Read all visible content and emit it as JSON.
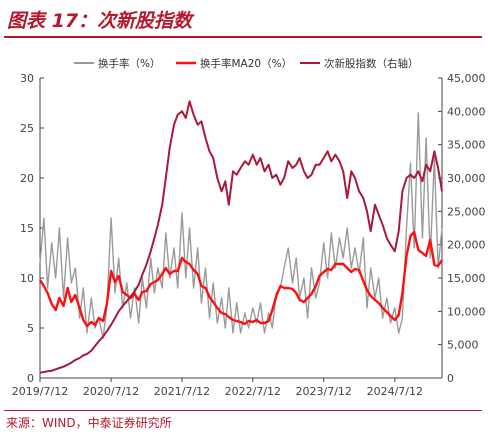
{
  "header": {
    "title": "图表 17：次新股指数"
  },
  "footer": {
    "source": "来源：WIND，中泰证券研究所"
  },
  "chart_data": {
    "type": "line",
    "title": "",
    "x_tick_labels": [
      "2019/7/12",
      "2020/7/12",
      "2021/7/12",
      "2022/7/12",
      "2023/7/12",
      "2024/7/12"
    ],
    "x_ticks": [
      "2019-07-12",
      "2020-07-12",
      "2021-07-12",
      "2022-07-12",
      "2023-07-12",
      "2024-07-12"
    ],
    "x_range": [
      "2019-07-12",
      "2025-03-12"
    ],
    "y_left": {
      "range": [
        0,
        30
      ],
      "ticks": [
        0,
        5,
        10,
        15,
        20,
        25,
        30
      ]
    },
    "y_right": {
      "range": [
        0,
        45000
      ],
      "ticks": [
        0,
        5000,
        10000,
        15000,
        20000,
        25000,
        30000,
        35000,
        40000,
        45000
      ],
      "tick_labels": [
        "0",
        "5,000",
        "10,000",
        "15,000",
        "20,000",
        "25,000",
        "30,000",
        "35,000",
        "40,000",
        "45,000"
      ]
    },
    "grid": false,
    "legend_position": "top",
    "series": [
      {
        "name": "换手率（%）",
        "axis": "left",
        "color": "#9a9a9a",
        "x": [
          "2019-07-12",
          "2019-08-01",
          "2019-08-20",
          "2019-09-10",
          "2019-10-01",
          "2019-10-20",
          "2019-11-10",
          "2019-12-01",
          "2019-12-20",
          "2020-01-10",
          "2020-02-01",
          "2020-02-20",
          "2020-03-10",
          "2020-04-01",
          "2020-04-20",
          "2020-05-10",
          "2020-06-01",
          "2020-06-20",
          "2020-07-12",
          "2020-08-01",
          "2020-08-20",
          "2020-09-10",
          "2020-10-01",
          "2020-10-20",
          "2020-11-10",
          "2020-12-01",
          "2020-12-20",
          "2021-01-10",
          "2021-02-01",
          "2021-02-20",
          "2021-03-10",
          "2021-04-01",
          "2021-04-20",
          "2021-05-10",
          "2021-06-01",
          "2021-06-20",
          "2021-07-12",
          "2021-08-01",
          "2021-08-20",
          "2021-09-10",
          "2021-10-01",
          "2021-10-20",
          "2021-11-10",
          "2021-12-01",
          "2021-12-20",
          "2022-01-10",
          "2022-02-01",
          "2022-02-20",
          "2022-03-10",
          "2022-04-01",
          "2022-04-20",
          "2022-05-10",
          "2022-06-01",
          "2022-06-20",
          "2022-07-12",
          "2022-08-01",
          "2022-08-20",
          "2022-09-10",
          "2022-10-01",
          "2022-10-20",
          "2022-11-10",
          "2022-12-01",
          "2022-12-20",
          "2023-01-10",
          "2023-02-01",
          "2023-02-20",
          "2023-03-10",
          "2023-04-01",
          "2023-04-20",
          "2023-05-10",
          "2023-06-01",
          "2023-06-20",
          "2023-07-12",
          "2023-08-01",
          "2023-08-20",
          "2023-09-10",
          "2023-10-01",
          "2023-10-20",
          "2023-11-10",
          "2023-12-01",
          "2023-12-20",
          "2024-01-10",
          "2024-02-01",
          "2024-02-20",
          "2024-03-10",
          "2024-04-01",
          "2024-04-20",
          "2024-05-10",
          "2024-06-01",
          "2024-06-20",
          "2024-07-12",
          "2024-08-01",
          "2024-08-20",
          "2024-09-10",
          "2024-10-01",
          "2024-10-20",
          "2024-11-10",
          "2024-12-01",
          "2024-12-20",
          "2025-01-10",
          "2025-02-01",
          "2025-02-20",
          "2025-03-12"
        ],
        "values": [
          11.5,
          16,
          9,
          13.5,
          10,
          15,
          8,
          14,
          9.5,
          11,
          6,
          9,
          4.5,
          8,
          5,
          6,
          4,
          7,
          16,
          8.5,
          12,
          7,
          9.5,
          6,
          9,
          5.5,
          10,
          7,
          12,
          8.5,
          11,
          9,
          14.5,
          10,
          13,
          9,
          16.5,
          10,
          15,
          9,
          13,
          7.5,
          11,
          6,
          9.5,
          5.5,
          8,
          5,
          9,
          4.5,
          7.5,
          4.5,
          6.5,
          5,
          7,
          5.5,
          7.5,
          4.5,
          6.5,
          5,
          8.5,
          9,
          11,
          13,
          9.5,
          12,
          8,
          10,
          6,
          11,
          8,
          9.5,
          13.5,
          10,
          14.5,
          11,
          14,
          12,
          15,
          11,
          13,
          10.5,
          14,
          7,
          11,
          8,
          10,
          6,
          8,
          5.5,
          7,
          4.5,
          6,
          15,
          21.5,
          13,
          26.5,
          14,
          24,
          12,
          22,
          11,
          15
        ]
      },
      {
        "name": "换手率MA20（%）",
        "axis": "left",
        "color": "#ff1010",
        "x": [
          "2019-07-12",
          "2019-08-01",
          "2019-08-20",
          "2019-09-10",
          "2019-10-01",
          "2019-10-20",
          "2019-11-10",
          "2019-12-01",
          "2019-12-20",
          "2020-01-10",
          "2020-02-01",
          "2020-02-20",
          "2020-03-10",
          "2020-04-01",
          "2020-04-20",
          "2020-05-10",
          "2020-06-01",
          "2020-06-20",
          "2020-07-12",
          "2020-08-01",
          "2020-08-20",
          "2020-09-10",
          "2020-10-01",
          "2020-10-20",
          "2020-11-10",
          "2020-12-01",
          "2020-12-20",
          "2021-01-10",
          "2021-02-01",
          "2021-02-20",
          "2021-03-10",
          "2021-04-01",
          "2021-04-20",
          "2021-05-10",
          "2021-06-01",
          "2021-06-20",
          "2021-07-12",
          "2021-08-01",
          "2021-08-20",
          "2021-09-10",
          "2021-10-01",
          "2021-10-20",
          "2021-11-10",
          "2021-12-01",
          "2021-12-20",
          "2022-01-10",
          "2022-02-01",
          "2022-02-20",
          "2022-03-10",
          "2022-04-01",
          "2022-04-20",
          "2022-05-10",
          "2022-06-01",
          "2022-06-20",
          "2022-07-12",
          "2022-08-01",
          "2022-08-20",
          "2022-09-10",
          "2022-10-01",
          "2022-10-20",
          "2022-11-10",
          "2022-12-01",
          "2022-12-20",
          "2023-01-10",
          "2023-02-01",
          "2023-02-20",
          "2023-03-10",
          "2023-04-01",
          "2023-04-20",
          "2023-05-10",
          "2023-06-01",
          "2023-06-20",
          "2023-07-12",
          "2023-08-01",
          "2023-08-20",
          "2023-09-10",
          "2023-10-01",
          "2023-10-20",
          "2023-11-10",
          "2023-12-01",
          "2023-12-20",
          "2024-01-10",
          "2024-02-01",
          "2024-02-20",
          "2024-03-10",
          "2024-04-01",
          "2024-04-20",
          "2024-05-10",
          "2024-06-01",
          "2024-06-20",
          "2024-07-12",
          "2024-08-01",
          "2024-08-20",
          "2024-09-10",
          "2024-10-01",
          "2024-10-20",
          "2024-11-10",
          "2024-12-01",
          "2024-12-20",
          "2025-01-10",
          "2025-02-01",
          "2025-02-20",
          "2025-03-12"
        ],
        "values": [
          9.8,
          9.2,
          8.5,
          7.4,
          6.8,
          8,
          7.2,
          9,
          7.6,
          8.3,
          7,
          5.8,
          5.2,
          5.6,
          5.3,
          6,
          5.7,
          7.4,
          10.7,
          9.6,
          10.2,
          8.6,
          8.3,
          8,
          8.4,
          7.8,
          8.6,
          8.7,
          9.4,
          9.6,
          9.8,
          10.4,
          11,
          10.4,
          10.7,
          10.7,
          12,
          11.6,
          11.4,
          10.8,
          10.4,
          9.2,
          9,
          8.1,
          7.6,
          7,
          6.5,
          6.4,
          6.1,
          5.8,
          5.7,
          5.6,
          5.4,
          5.7,
          5.6,
          5.8,
          5.5,
          5.5,
          5.7,
          6.8,
          8.2,
          9.2,
          9,
          9,
          8.9,
          8.5,
          7.8,
          7.6,
          8,
          8.4,
          9.2,
          10.2,
          10.6,
          10.9,
          10.8,
          11.4,
          11.4,
          11.4,
          11,
          10.6,
          10.9,
          10.8,
          9.7,
          8.8,
          8.2,
          7.8,
          7.5,
          7,
          6.6,
          6.2,
          5.8,
          6.3,
          8.5,
          12.2,
          14.2,
          14.6,
          12.8,
          12.5,
          12.2,
          13.8,
          11.3,
          11.2,
          11.8
        ]
      },
      {
        "name": "次新股指数（右轴）",
        "axis": "right",
        "color": "#a8193a",
        "x": [
          "2019-07-12",
          "2019-08-01",
          "2019-08-20",
          "2019-09-10",
          "2019-10-01",
          "2019-10-20",
          "2019-11-10",
          "2019-12-01",
          "2019-12-20",
          "2020-01-10",
          "2020-02-01",
          "2020-02-20",
          "2020-03-10",
          "2020-04-01",
          "2020-04-20",
          "2020-05-10",
          "2020-06-01",
          "2020-06-20",
          "2020-07-12",
          "2020-08-01",
          "2020-08-20",
          "2020-09-10",
          "2020-10-01",
          "2020-10-20",
          "2020-11-10",
          "2020-12-01",
          "2020-12-20",
          "2021-01-10",
          "2021-02-01",
          "2021-02-20",
          "2021-03-10",
          "2021-04-01",
          "2021-04-20",
          "2021-05-10",
          "2021-06-01",
          "2021-06-20",
          "2021-07-12",
          "2021-08-01",
          "2021-08-20",
          "2021-09-10",
          "2021-10-01",
          "2021-10-20",
          "2021-11-10",
          "2021-12-01",
          "2021-12-20",
          "2022-01-10",
          "2022-02-01",
          "2022-02-20",
          "2022-03-10",
          "2022-04-01",
          "2022-04-20",
          "2022-05-10",
          "2022-06-01",
          "2022-06-20",
          "2022-07-12",
          "2022-08-01",
          "2022-08-20",
          "2022-09-10",
          "2022-10-01",
          "2022-10-20",
          "2022-11-10",
          "2022-12-01",
          "2022-12-20",
          "2023-01-10",
          "2023-02-01",
          "2023-02-20",
          "2023-03-10",
          "2023-04-01",
          "2023-04-20",
          "2023-05-10",
          "2023-06-01",
          "2023-06-20",
          "2023-07-12",
          "2023-08-01",
          "2023-08-20",
          "2023-09-10",
          "2023-10-01",
          "2023-10-20",
          "2023-11-10",
          "2023-12-01",
          "2023-12-20",
          "2024-01-10",
          "2024-02-01",
          "2024-02-20",
          "2024-03-10",
          "2024-04-01",
          "2024-04-20",
          "2024-05-10",
          "2024-06-01",
          "2024-06-20",
          "2024-07-12",
          "2024-08-01",
          "2024-08-20",
          "2024-09-10",
          "2024-10-01",
          "2024-10-20",
          "2024-11-10",
          "2024-12-01",
          "2024-12-20",
          "2025-01-10",
          "2025-02-01",
          "2025-02-20",
          "2025-03-12"
        ],
        "values": [
          800,
          900,
          1000,
          1100,
          1300,
          1500,
          1700,
          2000,
          2300,
          2700,
          3000,
          3400,
          3600,
          4100,
          4800,
          5500,
          6200,
          7000,
          8000,
          9000,
          10000,
          10800,
          11500,
          12200,
          13000,
          14000,
          15500,
          17000,
          19000,
          21000,
          23000,
          26000,
          30000,
          34500,
          38000,
          39500,
          40000,
          39000,
          41500,
          39500,
          38000,
          38500,
          36000,
          34000,
          33000,
          30000,
          28000,
          29500,
          26000,
          31000,
          30500,
          31500,
          32500,
          32000,
          33500,
          32000,
          33000,
          31000,
          32000,
          30000,
          30500,
          29000,
          30000,
          32500,
          31500,
          32000,
          33000,
          31000,
          30000,
          30500,
          32000,
          32000,
          33000,
          34000,
          32500,
          33500,
          32500,
          31000,
          27000,
          31000,
          30000,
          28000,
          27000,
          25000,
          22000,
          26000,
          24500,
          23000,
          21000,
          20000,
          19000,
          22000,
          28000,
          30000,
          30500,
          30000,
          31000,
          29500,
          32000,
          31000,
          34000,
          31500,
          28000
        ]
      }
    ]
  }
}
